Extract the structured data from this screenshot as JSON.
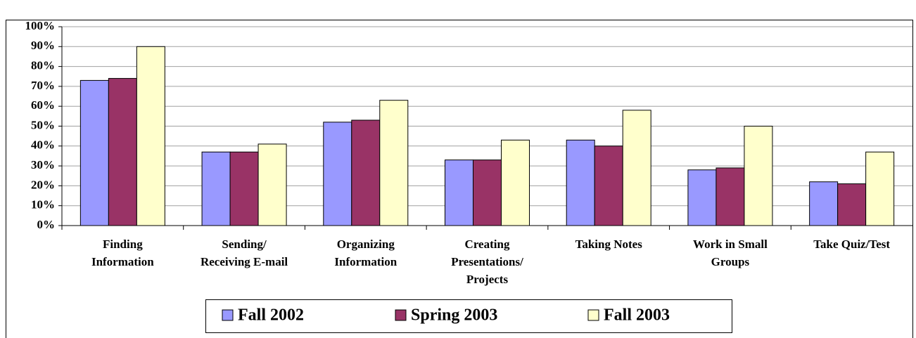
{
  "chart_data": {
    "type": "bar",
    "categories": [
      [
        "Finding",
        "Information"
      ],
      [
        "Sending/",
        "Receiving E-mail"
      ],
      [
        "Organizing",
        "Information"
      ],
      [
        "Creating",
        "Presentations/",
        "Projects"
      ],
      [
        "Taking Notes"
      ],
      [
        "Work in Small",
        "Groups"
      ],
      [
        "Take Quiz/Test"
      ]
    ],
    "series": [
      {
        "name": "Fall 2002",
        "color": "#9999ff",
        "values": [
          73,
          37,
          52,
          33,
          43,
          28,
          22
        ]
      },
      {
        "name": "Spring 2003",
        "color": "#993366",
        "values": [
          74,
          37,
          53,
          33,
          40,
          29,
          21
        ]
      },
      {
        "name": "Fall 2003",
        "color": "#ffffcc",
        "values": [
          90,
          41,
          63,
          43,
          58,
          50,
          37
        ]
      }
    ],
    "ylim": [
      0,
      100
    ],
    "yticks": [
      {
        "value": 0,
        "label": "0%"
      },
      {
        "value": 10,
        "label": "10%"
      },
      {
        "value": 20,
        "label": "20%"
      },
      {
        "value": 30,
        "label": "30%"
      },
      {
        "value": 40,
        "label": "40%"
      },
      {
        "value": 50,
        "label": "50%"
      },
      {
        "value": 60,
        "label": "60%"
      },
      {
        "value": 70,
        "label": "70%"
      },
      {
        "value": 80,
        "label": "80%"
      },
      {
        "value": 90,
        "label": "90%"
      },
      {
        "value": 100,
        "label": "100%"
      }
    ],
    "grid": true,
    "legend": "bottom"
  }
}
